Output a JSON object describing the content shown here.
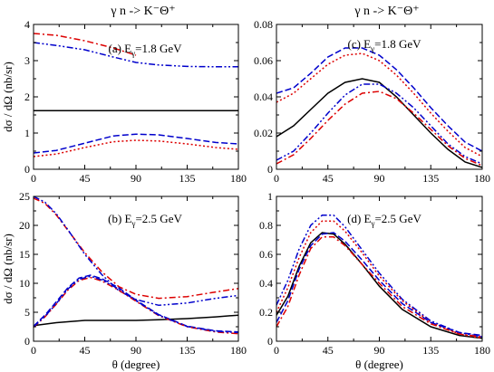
{
  "titles": {
    "left": "γ n -> K⁻Θ⁺",
    "right": "γ n -> K⁻Θ⁺"
  },
  "colors": {
    "black": "#000000",
    "blue": "#0000cc",
    "red": "#dd0000"
  },
  "chart_data": [
    {
      "id": "a",
      "type": "line",
      "label_prefix": "(a)",
      "label_energy": "E",
      "label_sub": "γ",
      "label_value": "=1.8 GeV",
      "xlabel": "",
      "ylabel": "dσ / dΩ (nb/sr)",
      "xlim": [
        0,
        180
      ],
      "ylim": [
        0,
        4
      ],
      "xticks": [
        0,
        45,
        90,
        135,
        180
      ],
      "yticks": [
        0,
        1,
        2,
        3,
        4
      ],
      "xticklabels": [
        "0",
        "45",
        "90",
        "135",
        "180"
      ],
      "yticklabels": [
        "0",
        "1",
        "2",
        "3",
        "4"
      ],
      "series": [
        {
          "style": "solid",
          "color": "black",
          "x": [
            0,
            180
          ],
          "y": [
            1.62,
            1.62
          ]
        },
        {
          "style": "dashdot",
          "color": "red",
          "x": [
            0,
            20,
            45,
            70,
            90
          ],
          "y": [
            3.75,
            3.7,
            3.55,
            3.35,
            3.15
          ]
        },
        {
          "style": "dashdotdot",
          "color": "blue",
          "x": [
            0,
            20,
            45,
            70,
            90,
            110,
            135,
            160,
            180
          ],
          "y": [
            3.5,
            3.42,
            3.3,
            3.1,
            2.95,
            2.88,
            2.84,
            2.83,
            2.83
          ]
        },
        {
          "style": "dashed",
          "color": "blue",
          "x": [
            0,
            20,
            45,
            70,
            90,
            110,
            135,
            160,
            180
          ],
          "y": [
            0.45,
            0.52,
            0.72,
            0.92,
            0.97,
            0.95,
            0.85,
            0.74,
            0.7
          ]
        },
        {
          "style": "dotted",
          "color": "red",
          "x": [
            0,
            20,
            45,
            70,
            90,
            110,
            135,
            160,
            180
          ],
          "y": [
            0.35,
            0.42,
            0.6,
            0.76,
            0.8,
            0.78,
            0.7,
            0.6,
            0.55
          ]
        }
      ]
    },
    {
      "id": "b",
      "type": "line",
      "label_prefix": "(b)",
      "label_energy": "E",
      "label_sub": "γ",
      "label_value": "=2.5 GeV",
      "xlabel": "θ  (degree)",
      "ylabel": "dσ / dΩ (nb/sr)",
      "xlim": [
        0,
        180
      ],
      "ylim": [
        0,
        25
      ],
      "xticks": [
        0,
        45,
        90,
        135,
        180
      ],
      "yticks": [
        0,
        5,
        10,
        15,
        20,
        25
      ],
      "xticklabels": [
        "0",
        "45",
        "90",
        "135",
        "180"
      ],
      "yticklabels": [
        "0",
        "5",
        "10",
        "15",
        "20",
        "25"
      ],
      "series": [
        {
          "style": "solid",
          "color": "black",
          "x": [
            0,
            20,
            45,
            70,
            90,
            110,
            135,
            160,
            180
          ],
          "y": [
            2.7,
            3.2,
            3.6,
            3.6,
            3.6,
            3.7,
            3.9,
            4.2,
            4.5
          ]
        },
        {
          "style": "dashdot",
          "color": "red",
          "x": [
            0,
            10,
            20,
            30,
            45,
            60,
            75,
            90,
            110,
            135,
            160,
            180
          ],
          "y": [
            24.7,
            23.8,
            21.8,
            19.2,
            15.3,
            12.0,
            9.4,
            8.1,
            7.4,
            7.7,
            8.5,
            9.1
          ]
        },
        {
          "style": "dashdotdot",
          "color": "blue",
          "x": [
            0,
            10,
            20,
            30,
            45,
            60,
            75,
            90,
            110,
            135,
            160,
            180
          ],
          "y": [
            25.0,
            24.0,
            22.0,
            19.3,
            15.0,
            11.5,
            8.7,
            7.2,
            6.2,
            6.6,
            7.4,
            7.9
          ]
        },
        {
          "style": "dashed",
          "color": "blue",
          "x": [
            0,
            10,
            20,
            30,
            40,
            50,
            60,
            75,
            90,
            110,
            135,
            160,
            180
          ],
          "y": [
            2.6,
            4.5,
            6.8,
            9.2,
            10.9,
            11.4,
            10.8,
            9.2,
            7.1,
            4.6,
            2.6,
            1.8,
            1.6
          ]
        },
        {
          "style": "dashdot",
          "color": "red",
          "x": [
            0,
            10,
            20,
            30,
            40,
            50,
            60,
            75,
            90,
            110,
            135,
            160,
            180
          ],
          "y": [
            2.4,
            4.2,
            6.4,
            8.8,
            10.5,
            11.0,
            10.4,
            8.8,
            6.9,
            4.4,
            2.5,
            1.6,
            1.3
          ]
        },
        {
          "style": "dashdotdot",
          "color": "blue",
          "x": [
            0,
            10,
            20,
            30,
            40,
            50,
            60,
            75,
            90,
            110,
            135,
            160,
            180
          ],
          "y": [
            2.5,
            4.3,
            6.5,
            9.0,
            10.7,
            11.2,
            10.6,
            9.0,
            7.0,
            4.5,
            2.55,
            1.7,
            1.5
          ]
        }
      ]
    },
    {
      "id": "c",
      "type": "line",
      "label_prefix": "(c)",
      "label_energy": "E",
      "label_sub": "γ",
      "label_value": "=1.8 GeV",
      "xlabel": "",
      "ylabel": "",
      "xlim": [
        0,
        180
      ],
      "ylim": [
        0,
        0.08
      ],
      "xticks": [
        0,
        45,
        90,
        135,
        180
      ],
      "yticks": [
        0,
        0.02,
        0.04,
        0.06,
        0.08
      ],
      "xticklabels": [
        "0",
        "45",
        "90",
        "135",
        "180"
      ],
      "yticklabels": [
        "0",
        "0.02",
        "0.04",
        "0.06",
        "0.08"
      ],
      "series": [
        {
          "style": "solid",
          "color": "black",
          "x": [
            0,
            15,
            30,
            45,
            60,
            75,
            90,
            105,
            120,
            135,
            150,
            165,
            180
          ],
          "y": [
            0.018,
            0.024,
            0.033,
            0.042,
            0.048,
            0.05,
            0.048,
            0.04,
            0.03,
            0.02,
            0.011,
            0.004,
            0.001
          ]
        },
        {
          "style": "dashed",
          "color": "blue",
          "x": [
            0,
            15,
            30,
            45,
            60,
            75,
            90,
            105,
            120,
            135,
            150,
            165,
            180
          ],
          "y": [
            0.042,
            0.045,
            0.053,
            0.062,
            0.067,
            0.067,
            0.063,
            0.055,
            0.045,
            0.034,
            0.024,
            0.015,
            0.01
          ]
        },
        {
          "style": "dotted",
          "color": "red",
          "x": [
            0,
            15,
            30,
            45,
            60,
            75,
            90,
            105,
            120,
            135,
            150,
            165,
            180
          ],
          "y": [
            0.037,
            0.042,
            0.05,
            0.058,
            0.063,
            0.064,
            0.06,
            0.052,
            0.042,
            0.031,
            0.021,
            0.012,
            0.007
          ]
        },
        {
          "style": "dashdotdot",
          "color": "blue",
          "x": [
            0,
            15,
            30,
            45,
            60,
            75,
            90,
            105,
            120,
            135,
            150,
            165,
            180
          ],
          "y": [
            0.005,
            0.01,
            0.02,
            0.031,
            0.041,
            0.047,
            0.047,
            0.042,
            0.034,
            0.024,
            0.014,
            0.007,
            0.003
          ]
        },
        {
          "style": "dashdot",
          "color": "red",
          "x": [
            0,
            15,
            30,
            45,
            60,
            75,
            90,
            105,
            120,
            135,
            150,
            165,
            180
          ],
          "y": [
            0.003,
            0.008,
            0.017,
            0.027,
            0.036,
            0.042,
            0.043,
            0.039,
            0.031,
            0.022,
            0.013,
            0.006,
            0.002
          ]
        }
      ]
    },
    {
      "id": "d",
      "type": "line",
      "label_prefix": "(d)",
      "label_energy": "E",
      "label_sub": "γ",
      "label_value": "=2.5 GeV",
      "xlabel": "θ  (degree)",
      "ylabel": "",
      "xlim": [
        0,
        180
      ],
      "ylim": [
        0,
        1
      ],
      "xticks": [
        0,
        45,
        90,
        135,
        180
      ],
      "yticks": [
        0,
        0.2,
        0.4,
        0.6,
        0.8,
        1
      ],
      "xticklabels": [
        "0",
        "45",
        "90",
        "135",
        "180"
      ],
      "yticklabels": [
        "0",
        "0.2",
        "0.4",
        "0.6",
        "0.8",
        "1"
      ],
      "series": [
        {
          "style": "solid",
          "color": "black",
          "x": [
            0,
            10,
            20,
            30,
            40,
            50,
            60,
            75,
            90,
            110,
            135,
            160,
            180
          ],
          "y": [
            0.18,
            0.31,
            0.52,
            0.68,
            0.75,
            0.74,
            0.67,
            0.53,
            0.38,
            0.22,
            0.1,
            0.04,
            0.02
          ]
        },
        {
          "style": "dashdotdot",
          "color": "blue",
          "x": [
            0,
            10,
            20,
            30,
            40,
            50,
            60,
            75,
            90,
            110,
            135,
            160,
            180
          ],
          "y": [
            0.25,
            0.42,
            0.64,
            0.8,
            0.87,
            0.87,
            0.79,
            0.63,
            0.47,
            0.29,
            0.14,
            0.06,
            0.03
          ]
        },
        {
          "style": "dotted",
          "color": "red",
          "x": [
            0,
            10,
            20,
            30,
            40,
            50,
            60,
            75,
            90,
            110,
            135,
            160,
            180
          ],
          "y": [
            0.2,
            0.37,
            0.58,
            0.75,
            0.83,
            0.83,
            0.76,
            0.61,
            0.45,
            0.28,
            0.13,
            0.05,
            0.02
          ]
        },
        {
          "style": "dashed",
          "color": "blue",
          "x": [
            0,
            10,
            20,
            30,
            40,
            50,
            60,
            75,
            90,
            110,
            135,
            160,
            180
          ],
          "y": [
            0.13,
            0.28,
            0.5,
            0.66,
            0.74,
            0.75,
            0.69,
            0.56,
            0.42,
            0.26,
            0.13,
            0.06,
            0.04
          ]
        },
        {
          "style": "dashdot",
          "color": "red",
          "x": [
            0,
            10,
            20,
            30,
            40,
            50,
            60,
            75,
            90,
            110,
            135,
            160,
            180
          ],
          "y": [
            0.1,
            0.24,
            0.46,
            0.64,
            0.72,
            0.72,
            0.66,
            0.53,
            0.4,
            0.24,
            0.12,
            0.05,
            0.03
          ]
        }
      ]
    }
  ]
}
